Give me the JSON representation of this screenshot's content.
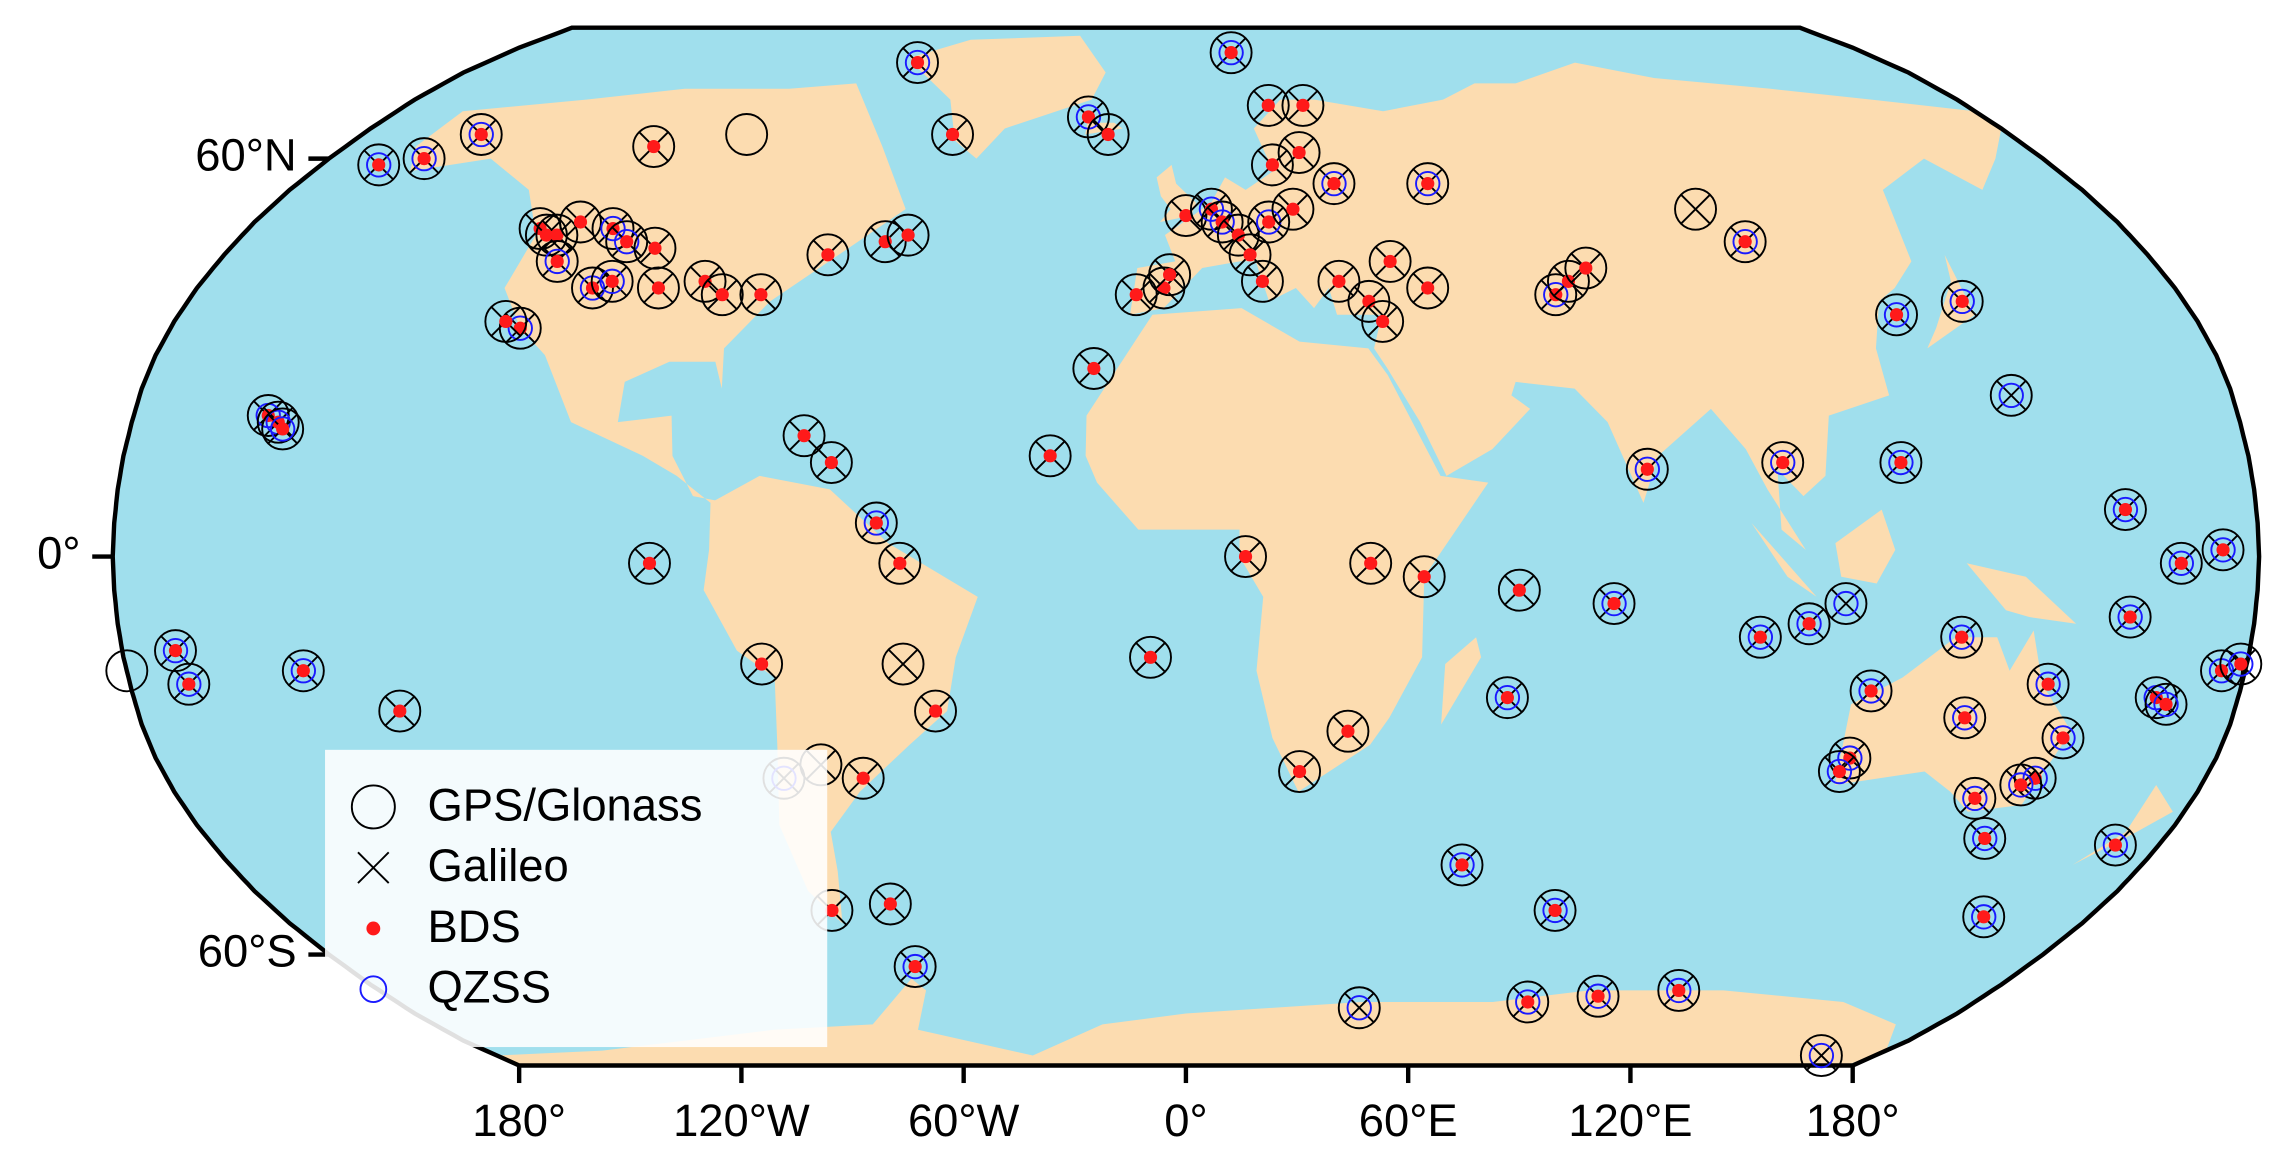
{
  "chart_data": {
    "type": "map",
    "land_color": "#fcdcb0",
    "ocean_color": "#a0dfed",
    "xlim": [
      -180,
      180
    ],
    "ylim": [
      -80,
      85
    ],
    "xticks": [
      {
        "value": -180,
        "label": "180°"
      },
      {
        "value": -120,
        "label": "120°W"
      },
      {
        "value": -60,
        "label": "60°W"
      },
      {
        "value": 0,
        "label": "0°"
      },
      {
        "value": 60,
        "label": "60°E"
      },
      {
        "value": 120,
        "label": "120°E"
      },
      {
        "value": 180,
        "label": "180°"
      }
    ],
    "yticks": [
      {
        "value": 60,
        "label": "60°N"
      },
      {
        "value": 0,
        "label": "0°"
      },
      {
        "value": -60,
        "label": "60°S"
      }
    ],
    "legend": [
      {
        "name": "GPS/Glonass",
        "color": "#000000",
        "marker": "circle"
      },
      {
        "name": "Galileo",
        "color": "#000000",
        "marker": "cross"
      },
      {
        "name": "BDS",
        "color": "#ff1a1a",
        "marker": "dot"
      },
      {
        "name": "QZSS",
        "color": "#1a1aff",
        "marker": "ring"
      }
    ],
    "stations": [
      {
        "lon": -157,
        "lat": 21,
        "systems": [
          0,
          1,
          2,
          3
        ]
      },
      {
        "lon": -155,
        "lat": 20,
        "systems": [
          0,
          1,
          2,
          3
        ]
      },
      {
        "lon": -154,
        "lat": 19,
        "systems": [
          0,
          1,
          2,
          3
        ]
      },
      {
        "lon": -168,
        "lat": 59,
        "systems": [
          0,
          1,
          2,
          3
        ]
      },
      {
        "lon": -160,
        "lat": 60,
        "systems": [
          0,
          1,
          2,
          3
        ]
      },
      {
        "lon": -154,
        "lat": 64,
        "systems": [
          0,
          1,
          2,
          3
        ]
      },
      {
        "lon": -114,
        "lat": 62,
        "systems": [
          0,
          1,
          2
        ]
      },
      {
        "lon": -96,
        "lat": 64,
        "systems": [
          0
        ]
      },
      {
        "lon": -124,
        "lat": 49,
        "systems": [
          0,
          1,
          2
        ]
      },
      {
        "lon": -122,
        "lat": 48,
        "systems": [
          0,
          1,
          2
        ]
      },
      {
        "lon": -120,
        "lat": 48,
        "systems": [
          0,
          1,
          2
        ]
      },
      {
        "lon": -117,
        "lat": 50,
        "systems": [
          0,
          1,
          2
        ]
      },
      {
        "lon": -118,
        "lat": 34,
        "systems": [
          0,
          1,
          2,
          3
        ]
      },
      {
        "lon": -121,
        "lat": 35,
        "systems": [
          0,
          1,
          2
        ]
      },
      {
        "lon": -117,
        "lat": 44,
        "systems": [
          0,
          1,
          2,
          3
        ]
      },
      {
        "lon": -108,
        "lat": 40,
        "systems": [
          0,
          1,
          2,
          3
        ]
      },
      {
        "lon": -105,
        "lat": 41,
        "systems": [
          0,
          1,
          2,
          3
        ]
      },
      {
        "lon": -110,
        "lat": 49,
        "systems": [
          0,
          1,
          2,
          3
        ]
      },
      {
        "lon": -106,
        "lat": 47,
        "systems": [
          0,
          1,
          2,
          3
        ]
      },
      {
        "lon": -100,
        "lat": 46,
        "systems": [
          0,
          1,
          2
        ]
      },
      {
        "lon": -96,
        "lat": 40,
        "systems": [
          0,
          1,
          2
        ]
      },
      {
        "lon": -88,
        "lat": 41,
        "systems": [
          0,
          1,
          2
        ]
      },
      {
        "lon": -84,
        "lat": 39,
        "systems": [
          0,
          1,
          2
        ]
      },
      {
        "lon": -77,
        "lat": 39,
        "systems": [
          0,
          1,
          2
        ]
      },
      {
        "lon": -65,
        "lat": 18,
        "systems": [
          0,
          1,
          2
        ]
      },
      {
        "lon": -60,
        "lat": 14,
        "systems": [
          0,
          1,
          2
        ]
      },
      {
        "lon": -67,
        "lat": 45,
        "systems": [
          0,
          1,
          2
        ]
      },
      {
        "lon": -57,
        "lat": 47,
        "systems": [
          0,
          1,
          2
        ]
      },
      {
        "lon": -53,
        "lat": 48,
        "systems": [
          0,
          1,
          2
        ]
      },
      {
        "lon": -69,
        "lat": 77,
        "systems": [
          0,
          1,
          2,
          3
        ]
      },
      {
        "lon": -51,
        "lat": 64,
        "systems": [
          0,
          1,
          2
        ]
      },
      {
        "lon": -22,
        "lat": 67,
        "systems": [
          0,
          1,
          2,
          3
        ]
      },
      {
        "lon": -17,
        "lat": 64,
        "systems": [
          0,
          1,
          2
        ]
      },
      {
        "lon": -16,
        "lat": 28,
        "systems": [
          0,
          1,
          2
        ]
      },
      {
        "lon": -23,
        "lat": 15,
        "systems": [
          0,
          1,
          2
        ]
      },
      {
        "lon": -6,
        "lat": -15,
        "systems": [
          0,
          1,
          2
        ]
      },
      {
        "lon": -9,
        "lat": 39,
        "systems": [
          0,
          1,
          2
        ]
      },
      {
        "lon": -4,
        "lat": 40,
        "systems": [
          0,
          1,
          2
        ]
      },
      {
        "lon": -3,
        "lat": 42,
        "systems": [
          0,
          1,
          2
        ]
      },
      {
        "lon": 0,
        "lat": 51,
        "systems": [
          0,
          1,
          2
        ]
      },
      {
        "lon": 5,
        "lat": 52,
        "systems": [
          0,
          1,
          2,
          3
        ]
      },
      {
        "lon": 7,
        "lat": 50,
        "systems": [
          0,
          1,
          2,
          3
        ]
      },
      {
        "lon": 10,
        "lat": 48,
        "systems": [
          0,
          1,
          2
        ]
      },
      {
        "lon": 12,
        "lat": 45,
        "systems": [
          0,
          1,
          2
        ]
      },
      {
        "lon": 14,
        "lat": 41,
        "systems": [
          0,
          1,
          2
        ]
      },
      {
        "lon": 16,
        "lat": 50,
        "systems": [
          0,
          1,
          2,
          3
        ]
      },
      {
        "lon": 18,
        "lat": 59,
        "systems": [
          0,
          1,
          2
        ]
      },
      {
        "lon": 24,
        "lat": 61,
        "systems": [
          0,
          1,
          2
        ]
      },
      {
        "lon": 12,
        "lat": 79,
        "systems": [
          0,
          1,
          2,
          3
        ]
      },
      {
        "lon": 19,
        "lat": 69,
        "systems": [
          0,
          1,
          2
        ]
      },
      {
        "lon": 27,
        "lat": 69,
        "systems": [
          0,
          1,
          2
        ]
      },
      {
        "lon": 21,
        "lat": 52,
        "systems": [
          0,
          1,
          2
        ]
      },
      {
        "lon": 30,
        "lat": 56,
        "systems": [
          0,
          1,
          2,
          3
        ]
      },
      {
        "lon": 28,
        "lat": 41,
        "systems": [
          0,
          1,
          2
        ]
      },
      {
        "lon": 33,
        "lat": 38,
        "systems": [
          0,
          1,
          2
        ]
      },
      {
        "lon": 38,
        "lat": 44,
        "systems": [
          0,
          1,
          2
        ]
      },
      {
        "lon": 35,
        "lat": 35,
        "systems": [
          0,
          1,
          2
        ]
      },
      {
        "lon": 10,
        "lat": 0,
        "systems": [
          0,
          1,
          2
        ]
      },
      {
        "lon": 31,
        "lat": -1,
        "systems": [
          0,
          1,
          2
        ]
      },
      {
        "lon": 40,
        "lat": -3,
        "systems": [
          0,
          1,
          2
        ]
      },
      {
        "lon": 56,
        "lat": -5,
        "systems": [
          0,
          1,
          2
        ]
      },
      {
        "lon": 72,
        "lat": -7,
        "systems": [
          0,
          1,
          2,
          3
        ]
      },
      {
        "lon": 55,
        "lat": -21,
        "systems": [
          0,
          1,
          2,
          3
        ]
      },
      {
        "lon": 28,
        "lat": -26,
        "systems": [
          0,
          1,
          2
        ]
      },
      {
        "lon": 20,
        "lat": -32,
        "systems": [
          0,
          1,
          2
        ]
      },
      {
        "lon": 49,
        "lat": 56,
        "systems": [
          0,
          1,
          2,
          3
        ]
      },
      {
        "lon": 44,
        "lat": 40,
        "systems": [
          0,
          1,
          2
        ]
      },
      {
        "lon": 67,
        "lat": 39,
        "systems": [
          0,
          1,
          2,
          3
        ]
      },
      {
        "lon": 70,
        "lat": 41,
        "systems": [
          0,
          1,
          2
        ]
      },
      {
        "lon": 74,
        "lat": 43,
        "systems": [
          0,
          1,
          2
        ]
      },
      {
        "lon": 100,
        "lat": 52,
        "systems": [
          0,
          1
        ]
      },
      {
        "lon": 106,
        "lat": 47,
        "systems": [
          0,
          1,
          2,
          3
        ]
      },
      {
        "lon": 127,
        "lat": 36,
        "systems": [
          0,
          1,
          2,
          3
        ]
      },
      {
        "lon": 140,
        "lat": 38,
        "systems": [
          0,
          1,
          2,
          3
        ]
      },
      {
        "lon": 142,
        "lat": 24,
        "systems": [
          0,
          1,
          3
        ]
      },
      {
        "lon": 78,
        "lat": 13,
        "systems": [
          0,
          1,
          2,
          3
        ]
      },
      {
        "lon": 101,
        "lat": 14,
        "systems": [
          0,
          1,
          2,
          3
        ]
      },
      {
        "lon": 121,
        "lat": 14,
        "systems": [
          0,
          1,
          2,
          3
        ]
      },
      {
        "lon": 158,
        "lat": 7,
        "systems": [
          0,
          1,
          2,
          3
        ]
      },
      {
        "lon": 167,
        "lat": -1,
        "systems": [
          0,
          1,
          2,
          3
        ]
      },
      {
        "lon": 174,
        "lat": 1,
        "systems": [
          0,
          1,
          2,
          3
        ]
      },
      {
        "lon": 159,
        "lat": -9,
        "systems": [
          0,
          1,
          2,
          3
        ]
      },
      {
        "lon": 97,
        "lat": -12,
        "systems": [
          0,
          1,
          2,
          3
        ]
      },
      {
        "lon": 105,
        "lat": -10,
        "systems": [
          0,
          1,
          2,
          3
        ]
      },
      {
        "lon": 111,
        "lat": -7,
        "systems": [
          0,
          1,
          3
        ]
      },
      {
        "lon": 131,
        "lat": -12,
        "systems": [
          0,
          1,
          2,
          3
        ]
      },
      {
        "lon": 117,
        "lat": -20,
        "systems": [
          0,
          1,
          2,
          3
        ]
      },
      {
        "lon": 116,
        "lat": -30,
        "systems": [
          0,
          1,
          2,
          3
        ]
      },
      {
        "lon": 115,
        "lat": -32,
        "systems": [
          0,
          1,
          2,
          3
        ]
      },
      {
        "lon": 134,
        "lat": -24,
        "systems": [
          0,
          1,
          2,
          3
        ]
      },
      {
        "lon": 147,
        "lat": -19,
        "systems": [
          0,
          1,
          2,
          3
        ]
      },
      {
        "lon": 152,
        "lat": -27,
        "systems": [
          0,
          1,
          2,
          3
        ]
      },
      {
        "lon": 150,
        "lat": -33,
        "systems": [
          0,
          1,
          2,
          3
        ]
      },
      {
        "lon": 148,
        "lat": -34,
        "systems": [
          0,
          1,
          2,
          3
        ]
      },
      {
        "lon": 141,
        "lat": -36,
        "systems": [
          0,
          1,
          2,
          3
        ]
      },
      {
        "lon": 147,
        "lat": -42,
        "systems": [
          0,
          1,
          2,
          3
        ]
      },
      {
        "lon": 159,
        "lat": -54,
        "systems": [
          0,
          1,
          2,
          3
        ]
      },
      {
        "lon": 172,
        "lat": -43,
        "systems": [
          0,
          1,
          2,
          3
        ]
      },
      {
        "lon": 166,
        "lat": -21,
        "systems": [
          0,
          1,
          2,
          3
        ]
      },
      {
        "lon": 168,
        "lat": -22,
        "systems": [
          0,
          1,
          2,
          3
        ]
      },
      {
        "lon": 176,
        "lat": -17,
        "systems": [
          0,
          1,
          2,
          3
        ]
      },
      {
        "lon": 179,
        "lat": -16,
        "systems": [
          0,
          1,
          2,
          3
        ]
      },
      {
        "lon": -180,
        "lat": -17,
        "systems": [
          0
        ]
      },
      {
        "lon": -171,
        "lat": -14,
        "systems": [
          0,
          1,
          2,
          3
        ]
      },
      {
        "lon": -170,
        "lat": -19,
        "systems": [
          0,
          1,
          2,
          3
        ]
      },
      {
        "lon": -150,
        "lat": -17,
        "systems": [
          0,
          1,
          2,
          3
        ]
      },
      {
        "lon": -135,
        "lat": -23,
        "systems": [
          0,
          1,
          2
        ]
      },
      {
        "lon": -90,
        "lat": -1,
        "systems": [
          0,
          1,
          2
        ]
      },
      {
        "lon": -72,
        "lat": -16,
        "systems": [
          0,
          1,
          2
        ]
      },
      {
        "lon": -52,
        "lat": 5,
        "systems": [
          0,
          1,
          2,
          3
        ]
      },
      {
        "lon": -48,
        "lat": -1,
        "systems": [
          0,
          1,
          2
        ]
      },
      {
        "lon": -48,
        "lat": -16,
        "systems": [
          0,
          1
        ]
      },
      {
        "lon": -43,
        "lat": -23,
        "systems": [
          0,
          1,
          2
        ]
      },
      {
        "lon": -57,
        "lat": -33,
        "systems": [
          0,
          1,
          2
        ]
      },
      {
        "lon": -64,
        "lat": -31,
        "systems": [
          0,
          1
        ]
      },
      {
        "lon": -71,
        "lat": -33,
        "systems": [
          0,
          1,
          3
        ]
      },
      {
        "lon": -70,
        "lat": -53,
        "systems": [
          0,
          1,
          2
        ]
      },
      {
        "lon": -58,
        "lat": -52,
        "systems": [
          0,
          1,
          2
        ]
      },
      {
        "lon": -58,
        "lat": -62,
        "systems": [
          0,
          1,
          2,
          3
        ]
      },
      {
        "lon": 40,
        "lat": -69,
        "systems": [
          0,
          1,
          3
        ]
      },
      {
        "lon": 78,
        "lat": -68,
        "systems": [
          0,
          1,
          2,
          3
        ]
      },
      {
        "lon": 93,
        "lat": -67,
        "systems": [
          0,
          1,
          2,
          3
        ]
      },
      {
        "lon": 110,
        "lat": -66,
        "systems": [
          0,
          1,
          2,
          3
        ]
      },
      {
        "lon": 166,
        "lat": -78,
        "systems": [
          0,
          1,
          3
        ]
      },
      {
        "lon": 52,
        "lat": -46,
        "systems": [
          0,
          1,
          2,
          3
        ]
      },
      {
        "lon": 73,
        "lat": -53,
        "systems": [
          0,
          1,
          2,
          3
        ]
      }
    ]
  }
}
